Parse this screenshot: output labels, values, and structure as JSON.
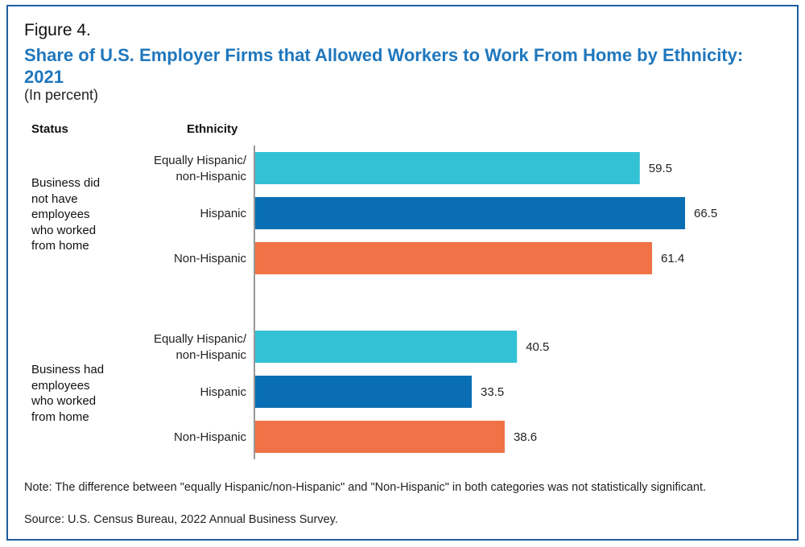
{
  "figure_label": "Figure 4.",
  "title": "Share of U.S. Employer Firms that Allowed Workers to Work From Home by Ethnicity: 2021",
  "subtitle": "(In percent)",
  "headers": {
    "status": "Status",
    "ethnicity": "Ethnicity"
  },
  "note": "Note: The difference between \"equally Hispanic/non-Hispanic\" and \"Non-Hispanic\" in both categories was not statistically significant.",
  "source": "Source: U.S. Census Bureau, 2022 Annual Business Survey.",
  "colors": {
    "title": "#1f77bd",
    "frame": "#1f5ea0",
    "equally": "#33c1d6",
    "hispanic": "#0a6eb4",
    "non_hispanic": "#f07246"
  },
  "chart_data": {
    "type": "bar",
    "orientation": "horizontal",
    "title": "Share of U.S. Employer Firms that Allowed Workers to Work From Home by Ethnicity: 2021",
    "xlabel": "",
    "ylabel": "",
    "unit": "percent",
    "xlim": [
      0,
      80
    ],
    "grid": false,
    "groups": [
      {
        "status": "Business did not have employees who worked from home",
        "bars": [
          {
            "ethnicity": "Equally Hispanic/ non-Hispanic",
            "label_lines": [
              "Equally Hispanic/",
              "non-Hispanic"
            ],
            "value": 59.5,
            "value_label": "59.5",
            "color_key": "equally"
          },
          {
            "ethnicity": "Hispanic",
            "label_lines": [
              "Hispanic"
            ],
            "value": 66.5,
            "value_label": "66.5",
            "color_key": "hispanic"
          },
          {
            "ethnicity": "Non-Hispanic",
            "label_lines": [
              "Non-Hispanic"
            ],
            "value": 61.4,
            "value_label": "61.4",
            "color_key": "non_hispanic"
          }
        ]
      },
      {
        "status": "Business had employees who worked from home",
        "bars": [
          {
            "ethnicity": "Equally Hispanic/ non-Hispanic",
            "label_lines": [
              "Equally Hispanic/",
              "non-Hispanic"
            ],
            "value": 40.5,
            "value_label": "40.5",
            "color_key": "equally"
          },
          {
            "ethnicity": "Hispanic",
            "label_lines": [
              "Hispanic"
            ],
            "value": 33.5,
            "value_label": "33.5",
            "color_key": "hispanic"
          },
          {
            "ethnicity": "Non-Hispanic",
            "label_lines": [
              "Non-Hispanic"
            ],
            "value": 38.6,
            "value_label": "38.6",
            "color_key": "non_hispanic"
          }
        ]
      }
    ],
    "status_label_lines": [
      [
        "Business did",
        "not have",
        "employees",
        "who worked",
        "from home"
      ],
      [
        "Business had",
        "employees",
        "who worked",
        "from home"
      ]
    ]
  }
}
